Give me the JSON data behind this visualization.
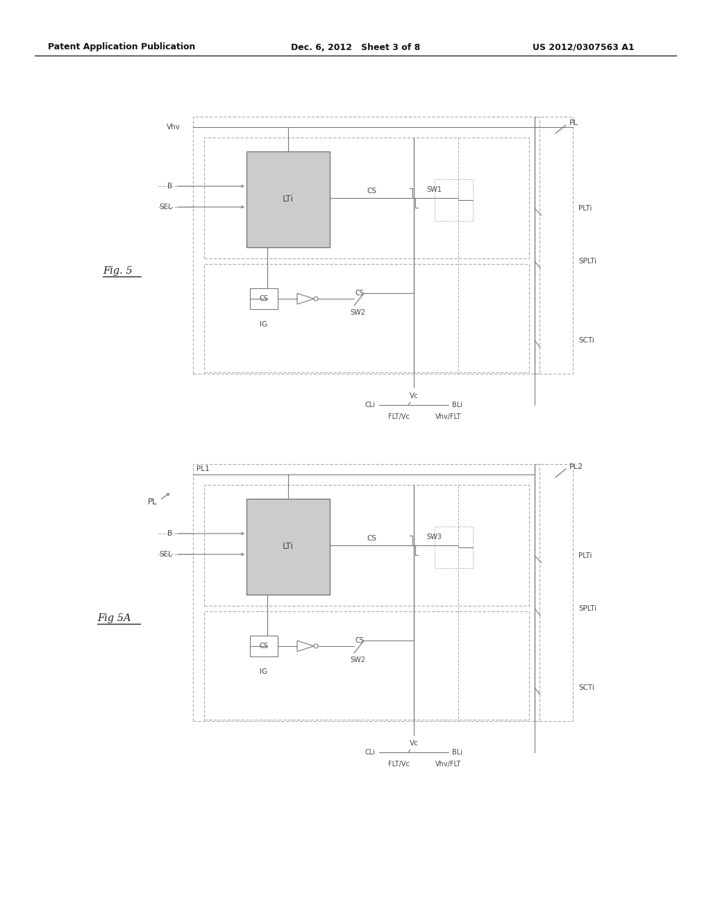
{
  "bg_color": "#ffffff",
  "header_left": "Patent Application Publication",
  "header_center": "Dec. 6, 2012   Sheet 3 of 8",
  "header_right": "US 2012/0307563 A1",
  "fig5_label": "Fig. 5",
  "fig5a_label": "Fig 5A",
  "lc": "#777777",
  "dc": "#aaaaaa",
  "tc": "#444444",
  "bfill": "#cccccc",
  "header_color": "#111111"
}
